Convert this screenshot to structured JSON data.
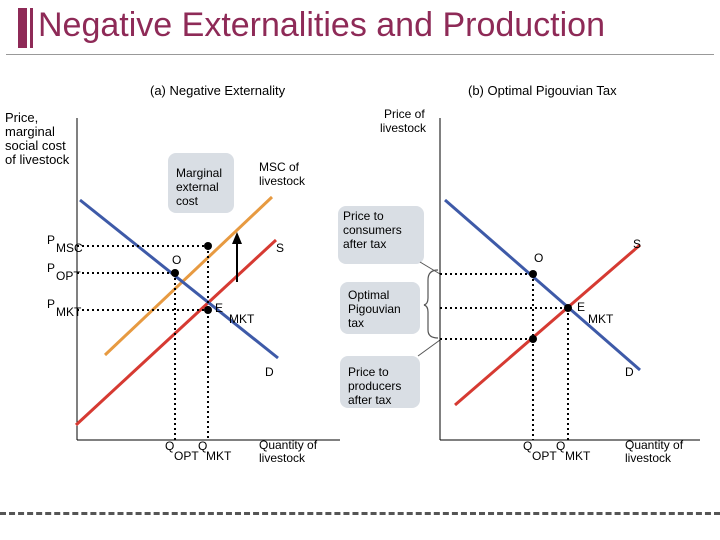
{
  "title": "Negative Externalities and Production",
  "panel_a": {
    "heading": "(a) Negative Externality",
    "y_axis_label": [
      "Price,",
      "marginal",
      "social cost",
      "of livestock"
    ],
    "msc_label": [
      "MSC of",
      "livestock"
    ],
    "mec_label": [
      "Marginal",
      "external",
      "cost"
    ],
    "s_label": "S",
    "d_label": "D",
    "o_label": "O",
    "e_label": "E",
    "mkt_sub": "MKT",
    "p_msc": {
      "main": "P",
      "sub": "MSC"
    },
    "p_opt": {
      "main": "P",
      "sub": "OPT"
    },
    "p_mkt": {
      "main": "P",
      "sub": "MKT"
    },
    "q_opt": {
      "main": "Q",
      "sub": "OPT"
    },
    "q_mkt": {
      "main": "Q",
      "sub": "MKT"
    },
    "x_axis_label": [
      "Quantity of",
      "livestock"
    ]
  },
  "panel_b": {
    "heading": "(b) Optimal Pigouvian Tax",
    "y_axis_label": [
      "Price of",
      "livestock"
    ],
    "consumer_price_label": [
      "Price to",
      "consumers",
      "after tax"
    ],
    "tax_label": [
      "Optimal",
      "Pigouvian",
      "tax"
    ],
    "producer_price_label": [
      "Price to",
      "producers",
      "after tax"
    ],
    "s_label": "S",
    "d_label": "D",
    "o_label": "O",
    "e_label": "E",
    "mkt_sub": "MKT",
    "q_opt": {
      "main": "Q",
      "sub": "OPT"
    },
    "q_mkt": {
      "main": "Q",
      "sub": "MKT"
    },
    "x_axis_label": [
      "Quantity of",
      "livestock"
    ]
  },
  "colors": {
    "title": "#8e2a57",
    "demand": "#3e5aa8",
    "supply": "#d63a32",
    "msc": "#e79a41",
    "label_box": "#d9dee4"
  }
}
